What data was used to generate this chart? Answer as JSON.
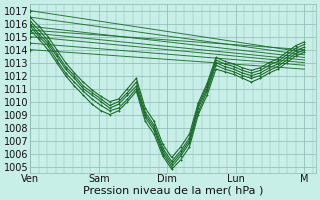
{
  "bg_color": "#c8eee8",
  "grid_color": "#8cb8b2",
  "line_color": "#1a6b2a",
  "ylabel_ticks": [
    1005,
    1006,
    1007,
    1008,
    1009,
    1010,
    1011,
    1012,
    1013,
    1014,
    1015,
    1016,
    1017
  ],
  "ylim": [
    1004.5,
    1017.5
  ],
  "xlabel": "Pression niveau de la mer( hPa )",
  "day_labels": [
    "Ven",
    "Sam",
    "Dim",
    "Lun",
    "M"
  ],
  "day_positions": [
    0,
    48,
    96,
    144,
    192
  ],
  "xlim": [
    0,
    200
  ],
  "font_size": 7,
  "title_font_size": 8,
  "straight_lines": [
    {
      "x": [
        0,
        192
      ],
      "y": [
        1017.0,
        1013.8
      ]
    },
    {
      "x": [
        0,
        192
      ],
      "y": [
        1016.5,
        1013.6
      ]
    },
    {
      "x": [
        0,
        192
      ],
      "y": [
        1015.8,
        1013.4
      ]
    },
    {
      "x": [
        0,
        192
      ],
      "y": [
        1015.3,
        1013.2
      ]
    },
    {
      "x": [
        0,
        192
      ],
      "y": [
        1015.0,
        1013.0
      ]
    },
    {
      "x": [
        0,
        192
      ],
      "y": [
        1014.5,
        1012.8
      ]
    },
    {
      "x": [
        0,
        192
      ],
      "y": [
        1014.0,
        1012.5
      ]
    },
    {
      "x": [
        0,
        192
      ],
      "y": [
        1015.5,
        1014.0
      ]
    }
  ],
  "curved_lines": [
    [
      1015.5,
      1014.8,
      1014.0,
      1013.0,
      1012.0,
      1011.2,
      1010.5,
      1009.8,
      1009.3,
      1009.0,
      1009.3,
      1010.0,
      1010.8,
      1008.5,
      1007.5,
      1005.8,
      1004.8,
      1005.5,
      1006.5,
      1009.0,
      1010.5,
      1012.5,
      1012.3,
      1012.1,
      1011.8,
      1011.5,
      1011.8,
      1012.2,
      1012.5,
      1013.0,
      1013.5,
      1013.8
    ],
    [
      1015.8,
      1015.0,
      1014.3,
      1013.2,
      1012.2,
      1011.5,
      1010.8,
      1010.2,
      1009.7,
      1009.3,
      1009.5,
      1010.2,
      1011.0,
      1008.8,
      1007.8,
      1006.0,
      1005.0,
      1005.8,
      1006.8,
      1009.2,
      1010.8,
      1012.8,
      1012.5,
      1012.3,
      1012.0,
      1011.8,
      1012.0,
      1012.4,
      1012.7,
      1013.2,
      1013.7,
      1014.0
    ],
    [
      1016.0,
      1015.2,
      1014.5,
      1013.5,
      1012.5,
      1011.8,
      1011.0,
      1010.5,
      1010.0,
      1009.5,
      1009.8,
      1010.5,
      1011.2,
      1009.0,
      1008.0,
      1006.2,
      1005.2,
      1006.0,
      1007.0,
      1009.5,
      1011.0,
      1013.0,
      1012.7,
      1012.5,
      1012.2,
      1012.0,
      1012.2,
      1012.6,
      1012.9,
      1013.4,
      1013.9,
      1014.2
    ],
    [
      1016.2,
      1015.5,
      1014.7,
      1013.7,
      1012.7,
      1012.0,
      1011.2,
      1010.7,
      1010.2,
      1009.7,
      1010.0,
      1010.7,
      1011.5,
      1009.2,
      1008.2,
      1006.4,
      1005.4,
      1006.2,
      1007.2,
      1009.7,
      1011.2,
      1013.2,
      1012.9,
      1012.7,
      1012.4,
      1012.2,
      1012.4,
      1012.8,
      1013.1,
      1013.6,
      1014.1,
      1014.4
    ],
    [
      1016.5,
      1015.8,
      1015.0,
      1014.0,
      1013.0,
      1012.2,
      1011.5,
      1010.9,
      1010.4,
      1010.0,
      1010.2,
      1011.0,
      1011.8,
      1009.5,
      1008.5,
      1006.7,
      1005.7,
      1006.5,
      1007.5,
      1009.9,
      1011.4,
      1013.4,
      1013.1,
      1012.9,
      1012.6,
      1012.4,
      1012.6,
      1013.0,
      1013.3,
      1013.8,
      1014.3,
      1014.6
    ]
  ]
}
